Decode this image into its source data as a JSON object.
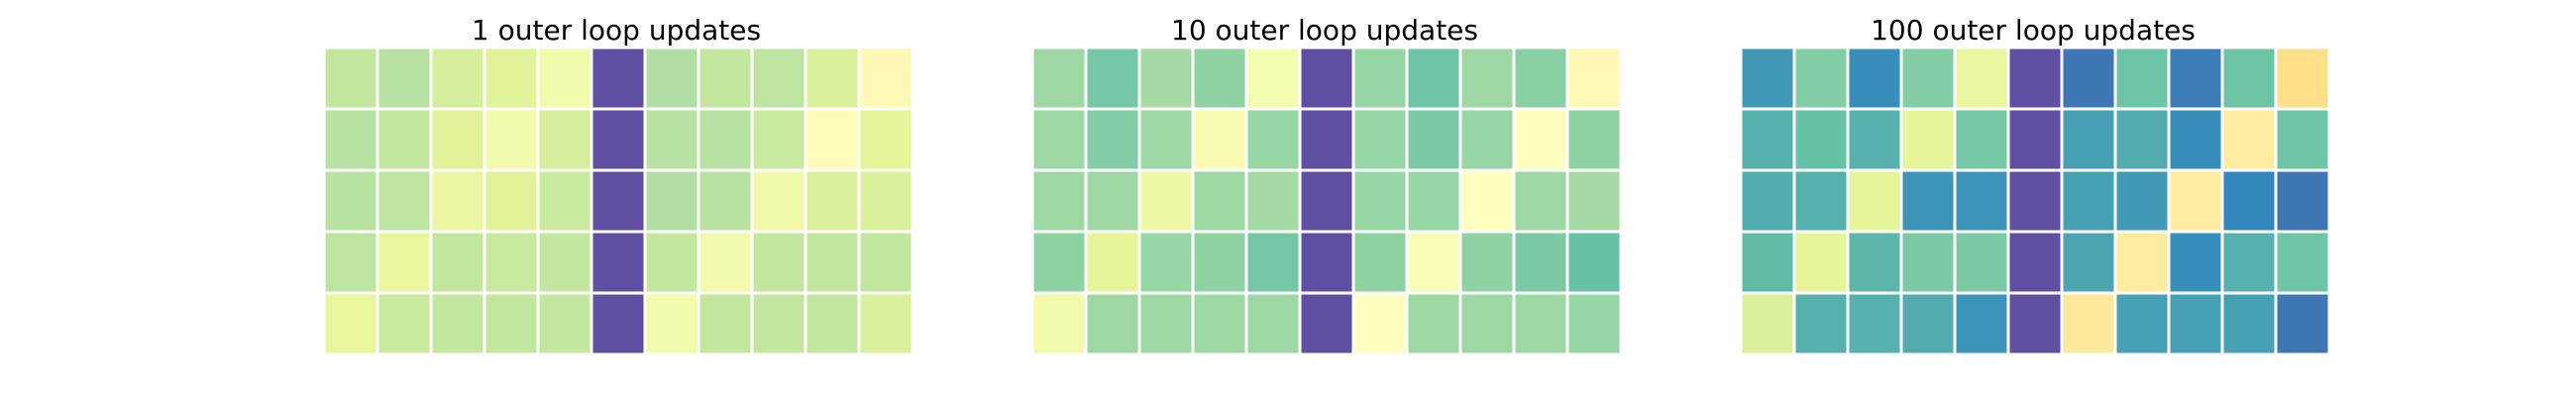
{
  "chart_data": [
    {
      "type": "heatmap",
      "title": "1 outer loop updates",
      "rows": 5,
      "cols": 11,
      "grid": false,
      "colormap": "Spectral",
      "values": [
        [
          0.66,
          0.68,
          0.63,
          0.61,
          0.55,
          1.0,
          0.69,
          0.66,
          0.67,
          0.62,
          0.48
        ],
        [
          0.68,
          0.66,
          0.61,
          0.55,
          0.63,
          1.0,
          0.68,
          0.68,
          0.65,
          0.49,
          0.6
        ],
        [
          0.68,
          0.67,
          0.58,
          0.61,
          0.65,
          1.0,
          0.69,
          0.68,
          0.56,
          0.62,
          0.62
        ],
        [
          0.67,
          0.59,
          0.66,
          0.65,
          0.66,
          1.0,
          0.66,
          0.55,
          0.66,
          0.66,
          0.66
        ],
        [
          0.59,
          0.65,
          0.66,
          0.66,
          0.66,
          1.0,
          0.55,
          0.66,
          0.66,
          0.66,
          0.62
        ]
      ]
    },
    {
      "type": "heatmap",
      "title": "10 outer loop updates",
      "rows": 5,
      "cols": 11,
      "grid": false,
      "colormap": "Spectral",
      "values": [
        [
          0.72,
          0.78,
          0.71,
          0.74,
          0.54,
          1.0,
          0.73,
          0.79,
          0.72,
          0.75,
          0.48
        ],
        [
          0.72,
          0.76,
          0.72,
          0.53,
          0.73,
          1.0,
          0.73,
          0.77,
          0.73,
          0.5,
          0.74
        ],
        [
          0.72,
          0.72,
          0.57,
          0.72,
          0.71,
          1.0,
          0.73,
          0.73,
          0.5,
          0.72,
          0.71
        ],
        [
          0.74,
          0.6,
          0.73,
          0.74,
          0.78,
          1.0,
          0.74,
          0.52,
          0.74,
          0.77,
          0.8
        ],
        [
          0.55,
          0.72,
          0.72,
          0.72,
          0.72,
          1.0,
          0.5,
          0.72,
          0.72,
          0.72,
          0.73
        ]
      ]
    },
    {
      "type": "heatmap",
      "title": "100 outer loop updates",
      "rows": 5,
      "cols": 11,
      "grid": false,
      "colormap": "Spectral",
      "values": [
        [
          0.87,
          0.76,
          0.89,
          0.76,
          0.58,
          1.0,
          0.93,
          0.79,
          0.92,
          0.79,
          0.4
        ],
        [
          0.83,
          0.8,
          0.83,
          0.6,
          0.78,
          1.0,
          0.86,
          0.84,
          0.89,
          0.44,
          0.79
        ],
        [
          0.84,
          0.83,
          0.6,
          0.88,
          0.88,
          1.0,
          0.86,
          0.87,
          0.44,
          0.9,
          0.93
        ],
        [
          0.81,
          0.6,
          0.82,
          0.77,
          0.77,
          1.0,
          0.85,
          0.44,
          0.89,
          0.83,
          0.79
        ],
        [
          0.62,
          0.83,
          0.83,
          0.84,
          0.88,
          1.0,
          0.43,
          0.86,
          0.86,
          0.86,
          0.93
        ]
      ]
    }
  ]
}
